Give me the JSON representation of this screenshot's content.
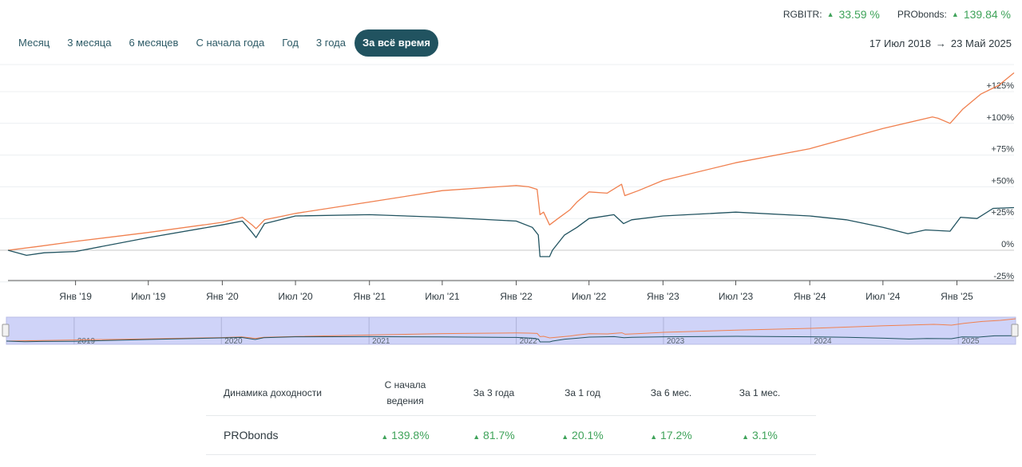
{
  "legend": [
    {
      "name": "RGBITR:",
      "value": "33.59 %",
      "color": "#215360"
    },
    {
      "name": "PRObonds:",
      "value": "139.84 %",
      "color": "#f0804f"
    }
  ],
  "periods": [
    {
      "label": "Месяц",
      "active": false
    },
    {
      "label": "3 месяца",
      "active": false
    },
    {
      "label": "6 месяцев",
      "active": false
    },
    {
      "label": "С начала года",
      "active": false
    },
    {
      "label": "Год",
      "active": false
    },
    {
      "label": "3 года",
      "active": false
    },
    {
      "label": "За всё время",
      "active": true
    }
  ],
  "date_range": {
    "from": "17 Июл 2018",
    "arrow": "→",
    "to": "23 Май 2025"
  },
  "chart_data": {
    "type": "line",
    "x_range": [
      "2018-07-17",
      "2025-05-23"
    ],
    "ylim": [
      -25,
      150
    ],
    "y_ticks": [
      {
        "value": -25,
        "label": "-25%"
      },
      {
        "value": 0,
        "label": "0%"
      },
      {
        "value": 25,
        "label": "+25%"
      },
      {
        "value": 50,
        "label": "+50%"
      },
      {
        "value": 75,
        "label": "+75%"
      },
      {
        "value": 100,
        "label": "+100%"
      },
      {
        "value": 125,
        "label": "+125%"
      }
    ],
    "x_ticks": [
      {
        "date": "2019-01-01",
        "label": "Янв '19"
      },
      {
        "date": "2019-07-01",
        "label": "Июл '19"
      },
      {
        "date": "2020-01-01",
        "label": "Янв '20"
      },
      {
        "date": "2020-07-01",
        "label": "Июл '20"
      },
      {
        "date": "2021-01-01",
        "label": "Янв '21"
      },
      {
        "date": "2021-07-01",
        "label": "Июл '21"
      },
      {
        "date": "2022-01-01",
        "label": "Янв '22"
      },
      {
        "date": "2022-07-01",
        "label": "Июл '22"
      },
      {
        "date": "2023-01-01",
        "label": "Янв '23"
      },
      {
        "date": "2023-07-01",
        "label": "Июл '23"
      },
      {
        "date": "2024-01-01",
        "label": "Янв '24"
      },
      {
        "date": "2024-07-01",
        "label": "Июл '24"
      },
      {
        "date": "2025-01-01",
        "label": "Янв '25"
      }
    ],
    "grid": true,
    "series": [
      {
        "name": "PRObonds",
        "color": "#f0804f",
        "points": [
          [
            "2018-07-17",
            0
          ],
          [
            "2018-10-01",
            3
          ],
          [
            "2019-01-01",
            7
          ],
          [
            "2019-07-01",
            14
          ],
          [
            "2020-01-01",
            22
          ],
          [
            "2020-02-20",
            26
          ],
          [
            "2020-03-15",
            20
          ],
          [
            "2020-03-25",
            17
          ],
          [
            "2020-04-15",
            24
          ],
          [
            "2020-06-01",
            27
          ],
          [
            "2020-07-01",
            29
          ],
          [
            "2021-01-01",
            38
          ],
          [
            "2021-07-01",
            47
          ],
          [
            "2022-01-01",
            51
          ],
          [
            "2022-02-01",
            50
          ],
          [
            "2022-02-22",
            48
          ],
          [
            "2022-03-01",
            28
          ],
          [
            "2022-03-10",
            30
          ],
          [
            "2022-03-25",
            20
          ],
          [
            "2022-04-15",
            25
          ],
          [
            "2022-05-15",
            32
          ],
          [
            "2022-06-01",
            38
          ],
          [
            "2022-07-01",
            46
          ],
          [
            "2022-08-15",
            45
          ],
          [
            "2022-09-20",
            52
          ],
          [
            "2022-09-28",
            43
          ],
          [
            "2022-11-01",
            47
          ],
          [
            "2023-01-01",
            55
          ],
          [
            "2023-07-01",
            69
          ],
          [
            "2024-01-01",
            80
          ],
          [
            "2024-07-01",
            96
          ],
          [
            "2024-11-01",
            105
          ],
          [
            "2024-11-15",
            104
          ],
          [
            "2024-12-15",
            100
          ],
          [
            "2025-01-15",
            111
          ],
          [
            "2025-03-01",
            123
          ],
          [
            "2025-04-15",
            130
          ],
          [
            "2025-05-23",
            139.84
          ]
        ]
      },
      {
        "name": "RGBITR",
        "color": "#215360",
        "points": [
          [
            "2018-07-17",
            0
          ],
          [
            "2018-09-01",
            -4
          ],
          [
            "2018-10-15",
            -2
          ],
          [
            "2019-01-01",
            -1
          ],
          [
            "2019-07-01",
            10
          ],
          [
            "2020-01-01",
            20
          ],
          [
            "2020-02-20",
            23
          ],
          [
            "2020-03-15",
            14
          ],
          [
            "2020-03-25",
            10
          ],
          [
            "2020-04-15",
            21
          ],
          [
            "2020-07-01",
            27
          ],
          [
            "2021-01-01",
            28
          ],
          [
            "2021-07-01",
            26
          ],
          [
            "2022-01-01",
            23
          ],
          [
            "2022-02-10",
            18
          ],
          [
            "2022-02-25",
            12
          ],
          [
            "2022-03-01",
            -5
          ],
          [
            "2022-03-25",
            -5
          ],
          [
            "2022-04-01",
            0
          ],
          [
            "2022-05-01",
            12
          ],
          [
            "2022-06-01",
            18
          ],
          [
            "2022-07-01",
            25
          ],
          [
            "2022-09-01",
            28
          ],
          [
            "2022-09-25",
            21
          ],
          [
            "2022-10-15",
            24
          ],
          [
            "2023-01-01",
            27
          ],
          [
            "2023-07-01",
            30
          ],
          [
            "2024-01-01",
            27
          ],
          [
            "2024-04-01",
            24
          ],
          [
            "2024-07-01",
            18
          ],
          [
            "2024-09-01",
            13
          ],
          [
            "2024-10-15",
            16
          ],
          [
            "2024-12-15",
            15
          ],
          [
            "2025-01-10",
            26
          ],
          [
            "2025-02-20",
            25
          ],
          [
            "2025-04-01",
            33
          ],
          [
            "2025-05-23",
            33.59
          ]
        ]
      }
    ]
  },
  "navigator": {
    "year_labels": [
      {
        "date": "2019-01-01",
        "label": "2019"
      },
      {
        "date": "2020-01-01",
        "label": "2020"
      },
      {
        "date": "2021-01-01",
        "label": "2021"
      },
      {
        "date": "2022-01-01",
        "label": "2022"
      },
      {
        "date": "2023-01-01",
        "label": "2023"
      },
      {
        "date": "2024-01-01",
        "label": "2024"
      },
      {
        "date": "2025-01-01",
        "label": "2025"
      }
    ],
    "selection_color": "#cfd3f8"
  },
  "table": {
    "header": [
      "Динамика доходности",
      "С начала ведения",
      "За 3 года",
      "За 1 год",
      "За 6 мес.",
      "За 1 мес."
    ],
    "rows": [
      {
        "name": "PRObonds",
        "values": [
          "139.8%",
          "81.7%",
          "20.1%",
          "17.2%",
          "3.1%"
        ]
      }
    ]
  }
}
